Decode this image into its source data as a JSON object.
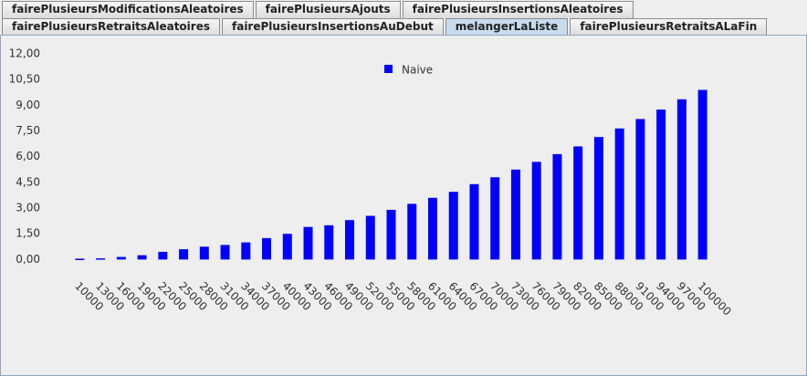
{
  "tabs": {
    "row1": [
      "fairePlusieursModificationsAleatoires",
      "fairePlusieursAjouts",
      "fairePlusieursInsertionsAleatoires"
    ],
    "row2": [
      "fairePlusieursRetraitsAleatoires",
      "fairePlusieursInsertionsAuDebut",
      "melangerLaListe",
      "fairePlusieursRetraitsALaFin"
    ]
  },
  "chart_data": {
    "type": "bar",
    "categories": [
      "10000",
      "13000",
      "16000",
      "19000",
      "22000",
      "25000",
      "28000",
      "31000",
      "34000",
      "37000",
      "40000",
      "43000",
      "46000",
      "49000",
      "52000",
      "55000",
      "58000",
      "61000",
      "64000",
      "67000",
      "70000",
      "73000",
      "76000",
      "79000",
      "82000",
      "85000",
      "88000",
      "91000",
      "94000",
      "97000",
      "100000"
    ],
    "series": [
      {
        "name": "Naive",
        "color": "#0000ff",
        "values": [
          0.05,
          0.07,
          0.15,
          0.25,
          0.45,
          0.6,
          0.75,
          0.85,
          1.0,
          1.25,
          1.5,
          1.9,
          2.0,
          2.3,
          2.55,
          2.9,
          3.25,
          3.6,
          3.95,
          4.4,
          4.8,
          5.25,
          5.7,
          6.15,
          6.6,
          7.15,
          7.65,
          8.2,
          8.75,
          9.35,
          9.9
        ]
      }
    ],
    "ylim": [
      -0.3,
      12.75
    ],
    "yticks": [
      {
        "value": 0,
        "label": "0,00"
      },
      {
        "value": 1.5,
        "label": "1,50"
      },
      {
        "value": 3,
        "label": "3,00"
      },
      {
        "value": 4.5,
        "label": "4,50"
      },
      {
        "value": 6,
        "label": "6,00"
      },
      {
        "value": 7.5,
        "label": "7,50"
      },
      {
        "value": 9,
        "label": "9,00"
      },
      {
        "value": 10.5,
        "label": "10,50"
      },
      {
        "value": 12,
        "label": "12,00"
      }
    ],
    "legend": "top"
  }
}
